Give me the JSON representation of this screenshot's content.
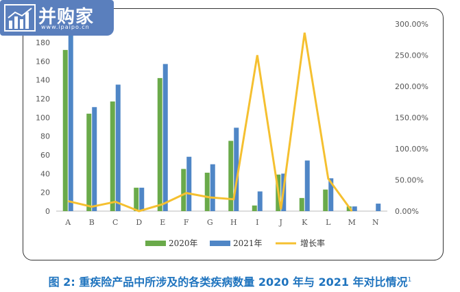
{
  "logo": {
    "name": "并购家",
    "url": "www.ipaipo.cn"
  },
  "caption": {
    "text": "图 2: 重疾险产品中所涉及的各类疾病数量 2020 年与 2021 年对比情况",
    "sup": "1"
  },
  "colors": {
    "s2020": "#6aaa4a",
    "s2021": "#4f86c6",
    "growth": "#f5c030"
  },
  "chart_data": {
    "type": "bar",
    "categories": [
      "A",
      "B",
      "C",
      "D",
      "E",
      "F",
      "G",
      "H",
      "I",
      "J",
      "K",
      "L",
      "M",
      "N"
    ],
    "series": [
      {
        "name": "2020年",
        "kind": "bar",
        "axis": "left",
        "values": [
          172,
          104,
          117,
          25,
          142,
          45,
          41,
          75,
          6,
          39,
          14,
          23,
          5,
          0
        ]
      },
      {
        "name": "2021年",
        "kind": "bar",
        "axis": "left",
        "values": [
          200,
          111,
          135,
          25,
          157,
          58,
          50,
          89,
          21,
          40,
          54,
          35,
          5,
          8
        ]
      },
      {
        "name": "增长率",
        "kind": "line",
        "axis": "right",
        "values": [
          16,
          7,
          15,
          0,
          11,
          29,
          22,
          19,
          250,
          3,
          286,
          52,
          0,
          null
        ]
      }
    ],
    "y_left": {
      "ticks": [
        0,
        20,
        40,
        60,
        80,
        100,
        120,
        140,
        160,
        180
      ],
      "range": [
        0,
        200
      ]
    },
    "y_right": {
      "ticks": [
        "0.00%",
        "50.00%",
        "100.00%",
        "150.00%",
        "200.00%",
        "250.00%",
        "300.00%"
      ],
      "range": [
        0,
        300
      ]
    },
    "legend": "bottom-center",
    "grid": false
  }
}
